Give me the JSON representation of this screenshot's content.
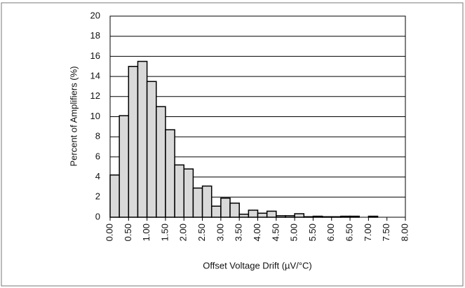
{
  "chart_data": {
    "type": "histogram",
    "xlabel": "Offset Voltage Drift (µV/°C)",
    "ylabel": "Percent of Amplifiers (%)",
    "bins": [
      0,
      0.25,
      0.5,
      0.75,
      1,
      1.25,
      1.5,
      1.75,
      2,
      2.25,
      2.5,
      2.75,
      3,
      3.25,
      3.5,
      3.75,
      4,
      4.25,
      4.5,
      4.75,
      5,
      5.25,
      5.5,
      5.75,
      6,
      6.25,
      6.5,
      6.75,
      7,
      7.25,
      7.5,
      7.75,
      8
    ],
    "values": [
      4.2,
      10.1,
      15.0,
      15.5,
      13.5,
      11.0,
      8.7,
      5.2,
      4.8,
      2.9,
      3.1,
      1.1,
      1.9,
      1.4,
      0.3,
      0.7,
      0.4,
      0.6,
      0.15,
      0.15,
      0.35,
      0.05,
      0.1,
      0.05,
      0.05,
      0.1,
      0.1,
      0,
      0.1,
      0,
      0,
      0
    ],
    "color": "#d9d9d9",
    "xlim": [
      0,
      8
    ],
    "xticks": [
      {
        "value": 0,
        "label": "0.00"
      },
      {
        "value": 0.5,
        "label": "0.50"
      },
      {
        "value": 1,
        "label": "1.00"
      },
      {
        "value": 1.5,
        "label": "1.50"
      },
      {
        "value": 2,
        "label": "2.00"
      },
      {
        "value": 2.5,
        "label": "2.50"
      },
      {
        "value": 3,
        "label": "3.00"
      },
      {
        "value": 3.5,
        "label": "3.50"
      },
      {
        "value": 4,
        "label": "4.00"
      },
      {
        "value": 4.5,
        "label": "4.50"
      },
      {
        "value": 5,
        "label": "5.00"
      },
      {
        "value": 5.5,
        "label": "5.50"
      },
      {
        "value": 6,
        "label": "6.00"
      },
      {
        "value": 6.5,
        "label": "6.50"
      },
      {
        "value": 7,
        "label": "7.00"
      },
      {
        "value": 7.5,
        "label": "7.50"
      },
      {
        "value": 8,
        "label": "8.00"
      }
    ],
    "ylim": [
      0,
      20
    ],
    "yticks": [
      0,
      2,
      4,
      6,
      8,
      10,
      12,
      14,
      16,
      18,
      20
    ],
    "grid": true
  }
}
